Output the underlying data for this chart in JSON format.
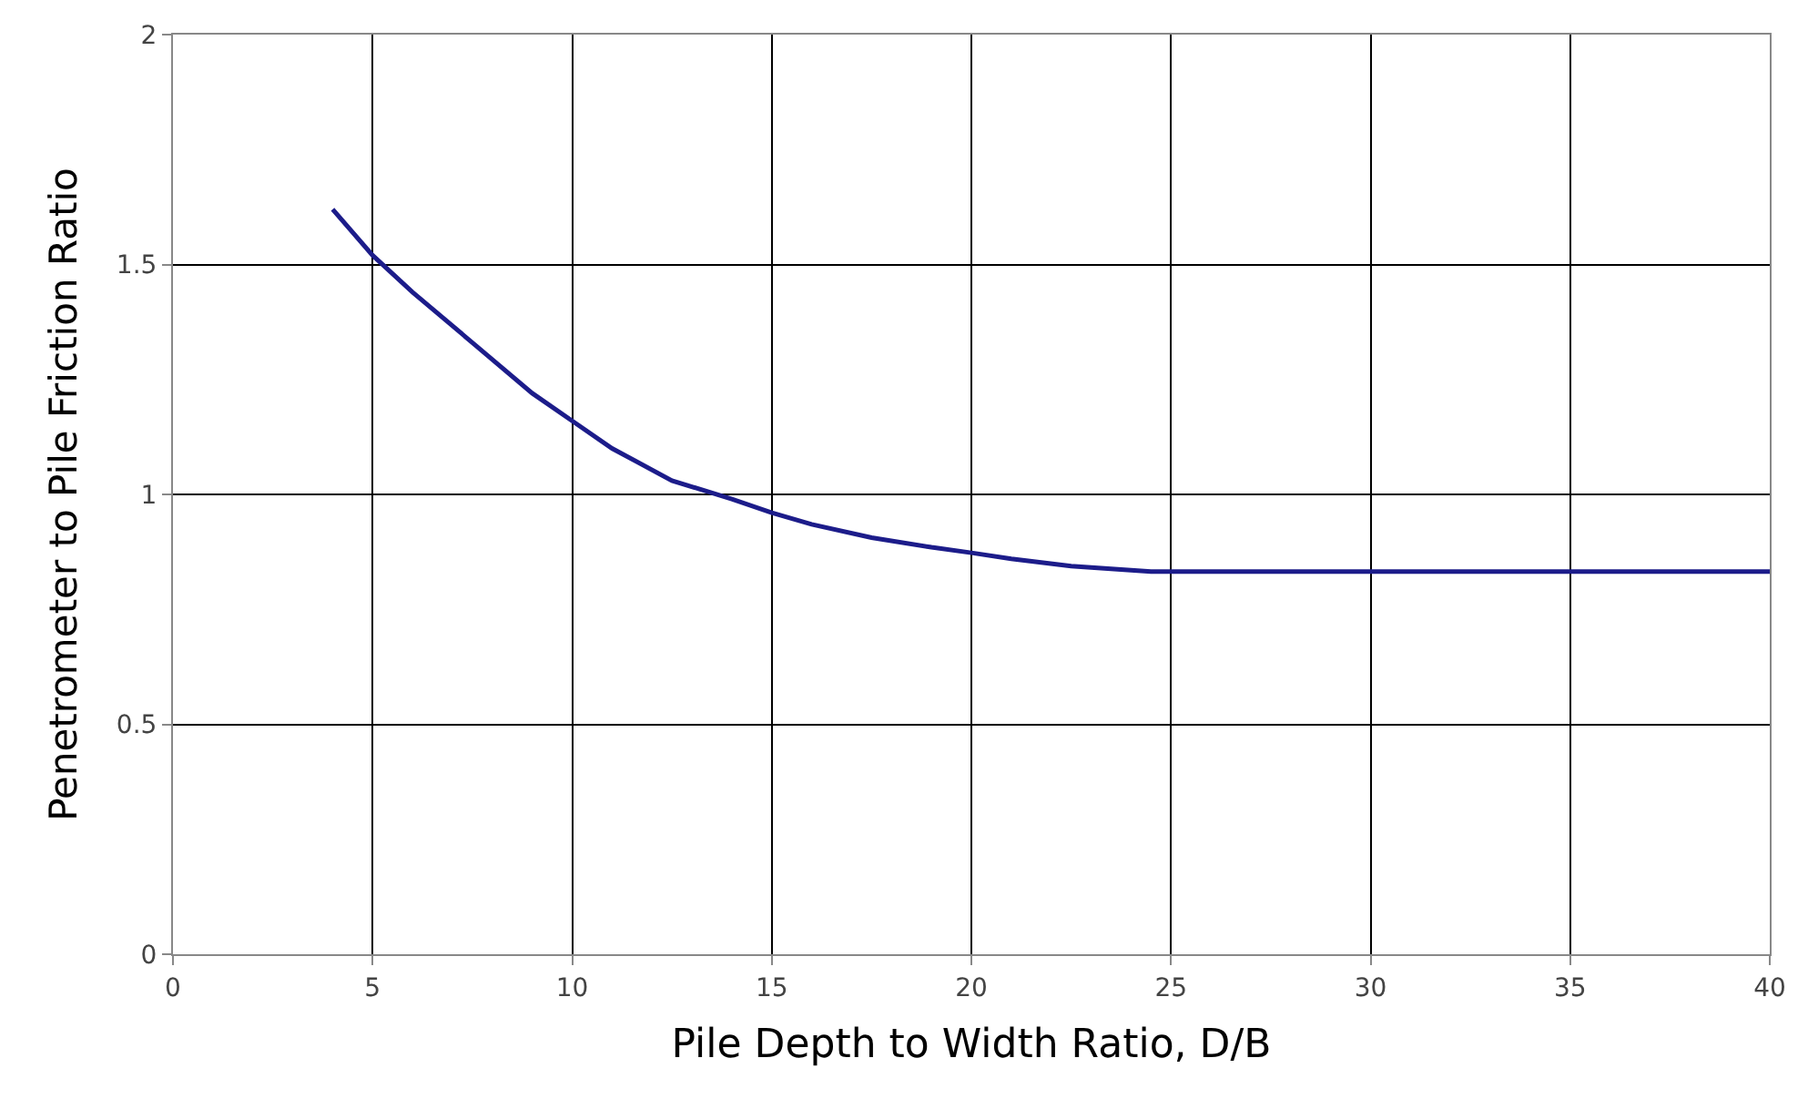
{
  "chart_data": {
    "type": "line",
    "xlabel": "Pile Depth to Width Ratio, D/B",
    "ylabel": "Penetrometer to Pile Friction Ratio",
    "x": [
      4,
      5,
      6,
      7.5,
      9,
      10,
      11,
      12.5,
      14,
      15,
      16,
      17.5,
      19,
      20,
      21,
      22.5,
      24,
      24.5,
      30,
      35,
      40
    ],
    "series": [
      {
        "color": "#1c1c8a",
        "values": [
          1.62,
          1.52,
          1.44,
          1.33,
          1.22,
          1.16,
          1.1,
          1.03,
          0.99,
          0.96,
          0.935,
          0.906,
          0.885,
          0.873,
          0.86,
          0.844,
          0.835,
          0.832,
          0.832,
          0.832,
          0.832
        ]
      }
    ],
    "xlim": [
      0,
      40
    ],
    "xticks": [
      0,
      5,
      10,
      15,
      20,
      25,
      30,
      35,
      40
    ],
    "ylim": [
      0,
      2
    ],
    "yticks": [
      0,
      0.5,
      1,
      1.5,
      2
    ],
    "grid": true,
    "marker": "none",
    "line_style": "solid"
  }
}
